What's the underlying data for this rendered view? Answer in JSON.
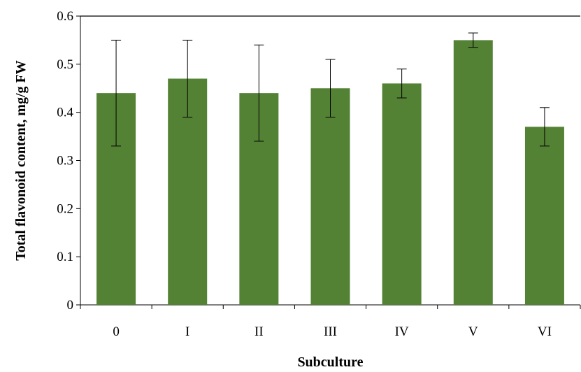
{
  "chart_data": {
    "type": "bar",
    "title": "",
    "xlabel": "Subculture",
    "ylabel": "Total flavonoid content, mg/g FW",
    "categories": [
      "0",
      "I",
      "II",
      "III",
      "IV",
      "V",
      "VI"
    ],
    "series": [
      {
        "values": [
          0.44,
          0.47,
          0.44,
          0.45,
          0.46,
          0.55,
          0.37
        ],
        "error_low": [
          0.33,
          0.39,
          0.34,
          0.39,
          0.43,
          0.535,
          0.33
        ],
        "error_high": [
          0.55,
          0.55,
          0.54,
          0.51,
          0.49,
          0.565,
          0.41
        ],
        "color": "#548235"
      }
    ],
    "ylim": [
      0,
      0.6
    ],
    "yticks": [
      "0",
      "0.1",
      "0.2",
      "0.3",
      "0.4",
      "0.5",
      "0.6"
    ],
    "grid": false,
    "legend": "none"
  }
}
